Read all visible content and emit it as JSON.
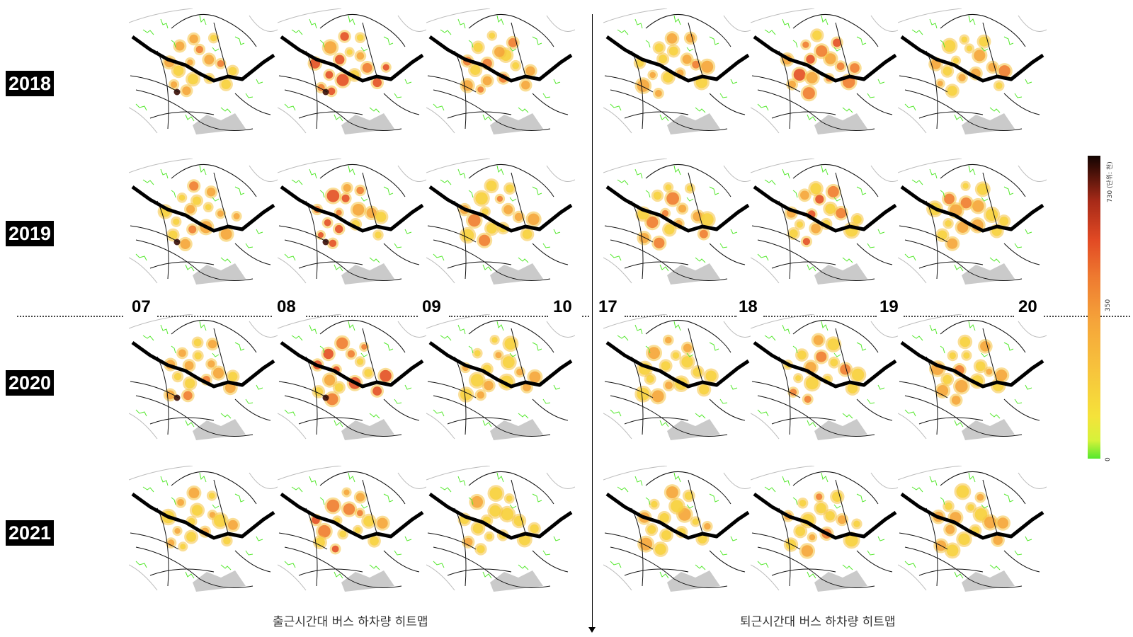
{
  "years": [
    "2018",
    "2019",
    "2020",
    "2021"
  ],
  "hours_left": [
    "07",
    "08",
    "09",
    "10"
  ],
  "hours_right": [
    "17",
    "18",
    "19",
    "20"
  ],
  "captions": {
    "left": "출근시간대 버스 하차량 히트맵",
    "right": "퇴근시간대 버스 하차량 히트맵"
  },
  "colorbar": {
    "max_label": "730 (단위: 천)",
    "mid_label": "350",
    "min_label": "0",
    "colors": {
      "low": "#55e82e",
      "mid": "#f5a53a",
      "high": "#120402"
    }
  }
}
